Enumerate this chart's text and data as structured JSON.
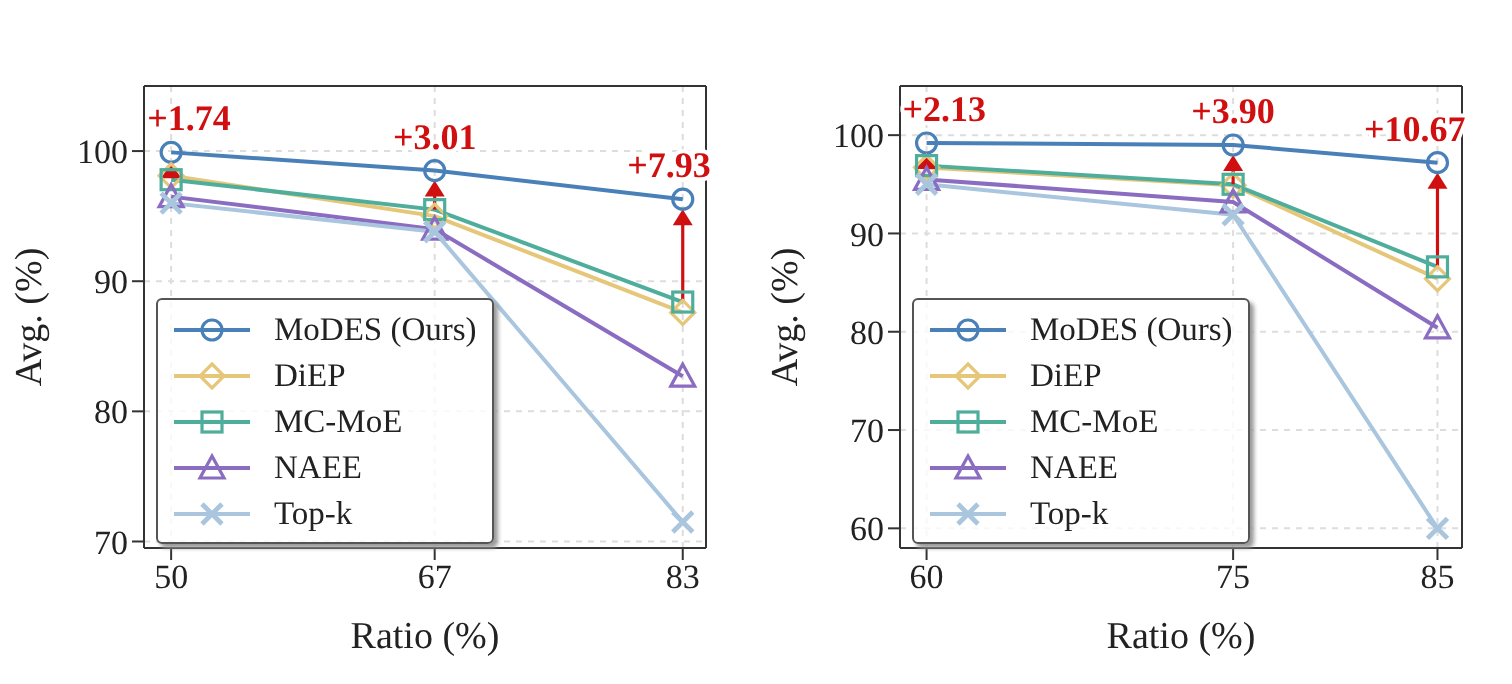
{
  "chart_data": [
    {
      "type": "line",
      "xlabel": "Ratio (%)",
      "ylabel": "Avg. (%)",
      "x": [
        50,
        67,
        83
      ],
      "xlim": [
        48.25,
        84.5
      ],
      "xticks": [
        50,
        67,
        83
      ],
      "ylim": [
        69.5,
        105
      ],
      "yticks": [
        70,
        80,
        90,
        100
      ],
      "grid": true,
      "legend": "bottom left",
      "line_style": "solid",
      "series": [
        {
          "name": "MoDES (Ours)",
          "color": "#4a80b8",
          "marker": "circle",
          "values": [
            99.9,
            98.5,
            96.3
          ]
        },
        {
          "name": "DiEP",
          "color": "#e6c77a",
          "marker": "diamond",
          "values": [
            98.1,
            95.0,
            87.6
          ]
        },
        {
          "name": "MC-MoE",
          "color": "#4fae9b",
          "marker": "square",
          "values": [
            97.8,
            95.5,
            88.4
          ]
        },
        {
          "name": "NAEE",
          "color": "#8a6cc0",
          "marker": "triangle",
          "values": [
            96.5,
            94.0,
            82.7
          ]
        },
        {
          "name": "Top-k",
          "color": "#a9c6de",
          "marker": "cross",
          "values": [
            96.0,
            93.8,
            71.5
          ]
        }
      ],
      "annotations": [
        {
          "text": "+1.74",
          "x": 50,
          "y": 99.9
        },
        {
          "text": "+3.01",
          "x": 67,
          "y": 98.5
        },
        {
          "text": "+7.93",
          "x": 83,
          "y": 96.3
        }
      ]
    },
    {
      "type": "line",
      "xlabel": "Ratio (%)",
      "ylabel": "Avg. (%)",
      "x": [
        60,
        75,
        85
      ],
      "xlim": [
        58.7,
        86.2
      ],
      "xticks": [
        60,
        75,
        85
      ],
      "ylim": [
        58,
        105
      ],
      "yticks": [
        60,
        70,
        80,
        90,
        100
      ],
      "grid": true,
      "legend": "bottom left",
      "line_style": "solid",
      "series": [
        {
          "name": "MoDES (Ours)",
          "color": "#4a80b8",
          "marker": "circle",
          "values": [
            99.2,
            99.0,
            97.2
          ]
        },
        {
          "name": "DiEP",
          "color": "#e6c77a",
          "marker": "diamond",
          "values": [
            96.7,
            94.9,
            85.4
          ]
        },
        {
          "name": "MC-MoE",
          "color": "#4fae9b",
          "marker": "square",
          "values": [
            96.9,
            95.0,
            86.6
          ]
        },
        {
          "name": "NAEE",
          "color": "#8a6cc0",
          "marker": "triangle",
          "values": [
            95.5,
            93.2,
            80.4
          ]
        },
        {
          "name": "Top-k",
          "color": "#a9c6de",
          "marker": "cross",
          "values": [
            95.0,
            91.9,
            60.0
          ]
        }
      ],
      "annotations": [
        {
          "text": "+2.13",
          "x": 60,
          "y": 99.2
        },
        {
          "text": "+3.90",
          "x": 75,
          "y": 99.0
        },
        {
          "text": "+10.67",
          "x": 85,
          "y": 97.2
        }
      ]
    }
  ]
}
